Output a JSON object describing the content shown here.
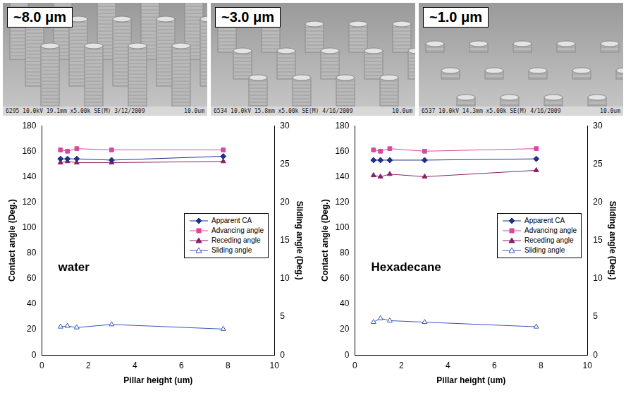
{
  "images": [
    {
      "label": "~8.0 μm",
      "caption": "6295 10.0kV 19.1mm x5.00k SE(M) 3/12/2009",
      "scale_bar": "10.0um"
    },
    {
      "label": "~3.0 μm",
      "caption": "6534 10.0kV 15.8mm x5.00k SE(M) 4/16/2009",
      "scale_bar": "10.0um"
    },
    {
      "label": "~1.0 μm",
      "caption": "6537 10.0kV 14.3mm x5.00k SE(M) 4/16/2009",
      "scale_bar": "10.0um"
    }
  ],
  "chart_data": [
    {
      "type": "line",
      "annotation": "water",
      "x_label": "Pillar height (um)",
      "y_label": "Contact angle (Deg.)",
      "y2_label": "Sliding angle (Deg.)",
      "x": [
        0.8,
        1.1,
        1.5,
        3.0,
        7.8
      ],
      "xlim": [
        0,
        10
      ],
      "xticks": [
        0,
        2,
        4,
        6,
        8,
        10
      ],
      "ylim": [
        0,
        180
      ],
      "yticks": [
        0,
        20,
        40,
        60,
        80,
        100,
        120,
        140,
        160,
        180
      ],
      "y2lim": [
        0,
        30
      ],
      "y2ticks": [
        0,
        5,
        10,
        15,
        20,
        25,
        30
      ],
      "grid": false,
      "legend": "right",
      "series": [
        {
          "name": "Apparent CA",
          "color": "#1f2f8a",
          "marker": "diamond",
          "values": [
            154,
            154,
            154,
            153,
            156
          ]
        },
        {
          "name": "Advancing angle",
          "color": "#d9479f",
          "marker": "square",
          "values": [
            161,
            160,
            162,
            161,
            161
          ]
        },
        {
          "name": "Receding angle",
          "color": "#8c1f63",
          "marker": "triangle",
          "values": [
            151,
            152,
            151,
            151,
            152
          ]
        },
        {
          "name": "Sliding angle",
          "color": "#3355bb",
          "marker": "triangle_open",
          "axis": "y2",
          "values": [
            3.7,
            3.8,
            3.6,
            4.0,
            3.4
          ]
        }
      ]
    },
    {
      "type": "line",
      "annotation": "Hexadecane",
      "x_label": "Pillar height (um)",
      "y_label": "Contact angle (Deg.)",
      "y2_label": "Sliding angle (Deg.)",
      "x": [
        0.8,
        1.1,
        1.5,
        3.0,
        7.8
      ],
      "xlim": [
        0,
        10
      ],
      "xticks": [
        0,
        2,
        4,
        6,
        8,
        10
      ],
      "ylim": [
        0,
        180
      ],
      "yticks": [
        0,
        20,
        40,
        60,
        80,
        100,
        120,
        140,
        160,
        180
      ],
      "y2lim": [
        0,
        30
      ],
      "y2ticks": [
        0,
        5,
        10,
        15,
        20,
        25,
        30
      ],
      "grid": false,
      "legend": "right",
      "series": [
        {
          "name": "Apparent CA",
          "color": "#1f2f8a",
          "marker": "diamond",
          "values": [
            153,
            153,
            153,
            153,
            154
          ]
        },
        {
          "name": "Advancing angle",
          "color": "#d9479f",
          "marker": "square",
          "values": [
            161,
            160,
            162,
            160,
            162
          ]
        },
        {
          "name": "Receding angle",
          "color": "#8c1f63",
          "marker": "triangle",
          "values": [
            141,
            140,
            142,
            140,
            145
          ]
        },
        {
          "name": "Sliding angle",
          "color": "#3355bb",
          "marker": "triangle_open",
          "axis": "y2",
          "values": [
            4.3,
            4.8,
            4.5,
            4.3,
            3.7
          ]
        }
      ]
    }
  ]
}
